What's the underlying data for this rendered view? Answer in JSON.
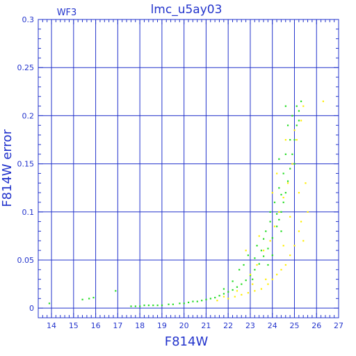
{
  "chart_data": {
    "type": "scatter",
    "title": "lmc_u5ay03",
    "subtitle": "WF3",
    "xlabel": "F814W",
    "ylabel": "F814W error",
    "xlim": [
      13.4,
      27
    ],
    "ylim": [
      -0.01,
      0.3
    ],
    "xticks": [
      14,
      15,
      16,
      17,
      18,
      19,
      20,
      21,
      22,
      23,
      24,
      25,
      26,
      27
    ],
    "yticks": [
      0,
      0.05,
      0.1,
      0.15,
      0.2,
      0.25,
      0.3
    ],
    "ytick_labels": [
      "0",
      "0.05",
      "0.1",
      "0.15",
      "0.2",
      "0.25",
      "0.3"
    ],
    "grid": true,
    "colors": {
      "axes": "#2233cc",
      "grid": "#2233cc",
      "green": "#22dd22",
      "yellow": "#ffee00"
    },
    "series": [
      {
        "color": "green",
        "points": [
          [
            13.9,
            0.005
          ],
          [
            15.4,
            0.009
          ],
          [
            15.7,
            0.01
          ],
          [
            15.9,
            0.011
          ],
          [
            16.9,
            0.018
          ],
          [
            17.6,
            0.002
          ],
          [
            17.8,
            0.002
          ],
          [
            18.0,
            0.002
          ],
          [
            18.2,
            0.003
          ],
          [
            18.4,
            0.003
          ],
          [
            18.6,
            0.003
          ],
          [
            18.8,
            0.003
          ],
          [
            19.0,
            0.003
          ],
          [
            19.3,
            0.004
          ],
          [
            19.5,
            0.004
          ],
          [
            19.8,
            0.005
          ],
          [
            20.0,
            0.005
          ],
          [
            20.2,
            0.006
          ],
          [
            20.4,
            0.007
          ],
          [
            20.6,
            0.007
          ],
          [
            20.8,
            0.008
          ],
          [
            21.0,
            0.009
          ],
          [
            21.2,
            0.01
          ],
          [
            21.4,
            0.011
          ],
          [
            21.6,
            0.013
          ],
          [
            21.8,
            0.015
          ],
          [
            22.0,
            0.017
          ],
          [
            22.2,
            0.019
          ],
          [
            22.4,
            0.022
          ],
          [
            22.6,
            0.025
          ],
          [
            22.8,
            0.029
          ],
          [
            23.0,
            0.034
          ],
          [
            23.2,
            0.04
          ],
          [
            23.4,
            0.046
          ],
          [
            23.6,
            0.054
          ],
          [
            23.8,
            0.062
          ],
          [
            24.0,
            0.073
          ],
          [
            24.2,
            0.085
          ],
          [
            24.3,
            0.092
          ],
          [
            24.4,
            0.1
          ],
          [
            24.5,
            0.11
          ],
          [
            24.6,
            0.12
          ],
          [
            24.7,
            0.132
          ],
          [
            24.8,
            0.145
          ],
          [
            24.9,
            0.16
          ],
          [
            25.0,
            0.175
          ],
          [
            25.1,
            0.19
          ],
          [
            25.2,
            0.205
          ],
          [
            25.3,
            0.215
          ],
          [
            22.5,
            0.04
          ],
          [
            22.9,
            0.055
          ],
          [
            23.3,
            0.065
          ],
          [
            23.1,
            0.03
          ],
          [
            23.5,
            0.06
          ],
          [
            23.7,
            0.08
          ],
          [
            23.9,
            0.09
          ],
          [
            24.1,
            0.11
          ],
          [
            24.3,
            0.125
          ],
          [
            24.5,
            0.14
          ],
          [
            24.0,
            0.055
          ],
          [
            23.8,
            0.045
          ],
          [
            24.6,
            0.16
          ],
          [
            24.8,
            0.175
          ],
          [
            24.7,
            0.19
          ],
          [
            24.9,
            0.2
          ],
          [
            25.1,
            0.21
          ],
          [
            24.6,
            0.21
          ],
          [
            24.3,
            0.155
          ],
          [
            22.2,
            0.028
          ],
          [
            21.8,
            0.02
          ],
          [
            23.2,
            0.052
          ],
          [
            23.6,
            0.072
          ],
          [
            24.2,
            0.098
          ],
          [
            24.4,
            0.118
          ],
          [
            25.2,
            0.195
          ],
          [
            25.0,
            0.15
          ],
          [
            24.4,
            0.08
          ],
          [
            23.9,
            0.1
          ],
          [
            22.7,
            0.045
          ]
        ]
      },
      {
        "color": "yellow",
        "points": [
          [
            22.0,
            0.01
          ],
          [
            22.3,
            0.012
          ],
          [
            22.6,
            0.014
          ],
          [
            22.9,
            0.016
          ],
          [
            23.2,
            0.018
          ],
          [
            23.5,
            0.02
          ],
          [
            23.8,
            0.025
          ],
          [
            24.0,
            0.03
          ],
          [
            24.2,
            0.035
          ],
          [
            24.4,
            0.04
          ],
          [
            24.6,
            0.045
          ],
          [
            24.8,
            0.055
          ],
          [
            25.0,
            0.065
          ],
          [
            25.2,
            0.08
          ],
          [
            25.3,
            0.09
          ],
          [
            23.0,
            0.035
          ],
          [
            23.3,
            0.045
          ],
          [
            23.6,
            0.06
          ],
          [
            23.9,
            0.07
          ],
          [
            24.1,
            0.085
          ],
          [
            24.3,
            0.1
          ],
          [
            24.5,
            0.115
          ],
          [
            24.7,
            0.13
          ],
          [
            24.9,
            0.15
          ],
          [
            25.1,
            0.175
          ],
          [
            25.3,
            0.195
          ],
          [
            25.4,
            0.21
          ],
          [
            26.3,
            0.215
          ],
          [
            25.6,
            0.1
          ],
          [
            25.5,
            0.13
          ],
          [
            22.8,
            0.06
          ],
          [
            23.4,
            0.075
          ],
          [
            24.0,
            0.12
          ],
          [
            24.2,
            0.14
          ],
          [
            25.0,
            0.185
          ],
          [
            21.5,
            0.008
          ],
          [
            21.8,
            0.012
          ],
          [
            23.7,
            0.03
          ],
          [
            24.5,
            0.065
          ],
          [
            25.2,
            0.12
          ],
          [
            23.1,
            0.025
          ],
          [
            22.4,
            0.018
          ],
          [
            24.8,
            0.095
          ],
          [
            25.4,
            0.07
          ],
          [
            24.6,
            0.175
          ]
        ]
      }
    ]
  }
}
